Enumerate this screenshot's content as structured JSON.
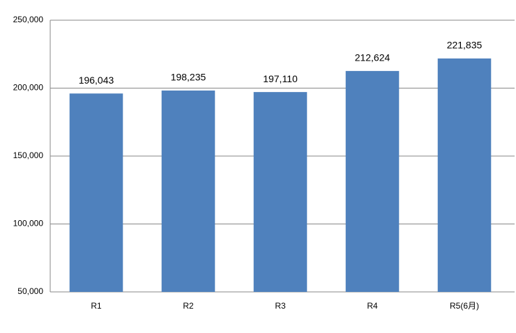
{
  "chart_data": {
    "type": "bar",
    "categories": [
      "R1",
      "R2",
      "R3",
      "R4",
      "R5(6月)"
    ],
    "values": [
      196043,
      198235,
      197110,
      212624,
      221835
    ],
    "value_labels": [
      "196,043",
      "198,235",
      "197,110",
      "212,624",
      "221,835"
    ],
    "color": "#4f81bd",
    "ylim": [
      50000,
      250000
    ],
    "yticks": [
      {
        "value": 50000,
        "label": "50,000"
      },
      {
        "value": 100000,
        "label": "100,000"
      },
      {
        "value": 150000,
        "label": "150,000"
      },
      {
        "value": 200000,
        "label": "200,000"
      },
      {
        "value": 250000,
        "label": "250,000"
      }
    ],
    "grid": true
  }
}
